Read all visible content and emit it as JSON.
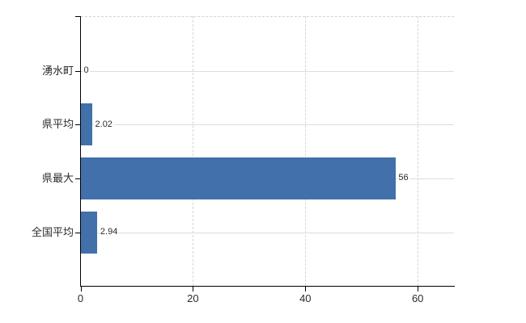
{
  "chart_data": {
    "type": "bar",
    "orientation": "horizontal",
    "title": "",
    "xlabel": "",
    "ylabel": "",
    "categories": [
      "湧水町",
      "県平均",
      "県最大",
      "全国平均"
    ],
    "values": [
      0,
      2.02,
      56,
      2.94
    ],
    "value_labels": [
      "0",
      "2.02",
      "56",
      "2.94"
    ],
    "xticks": [
      0,
      20,
      40,
      60
    ],
    "xtick_labels": [
      "0",
      "20",
      "40",
      "60"
    ],
    "xlim": [
      0,
      66.5
    ],
    "grid": true,
    "legend_position": "none",
    "colors": {
      "bar": "#4170ab",
      "axis": "#000000",
      "h_gridline": "#d9e0d9",
      "v_gridline": "#d4d4d4",
      "top_border": "#d4d4d4",
      "text": "#2b2b2b",
      "background": "#ffffff"
    }
  }
}
